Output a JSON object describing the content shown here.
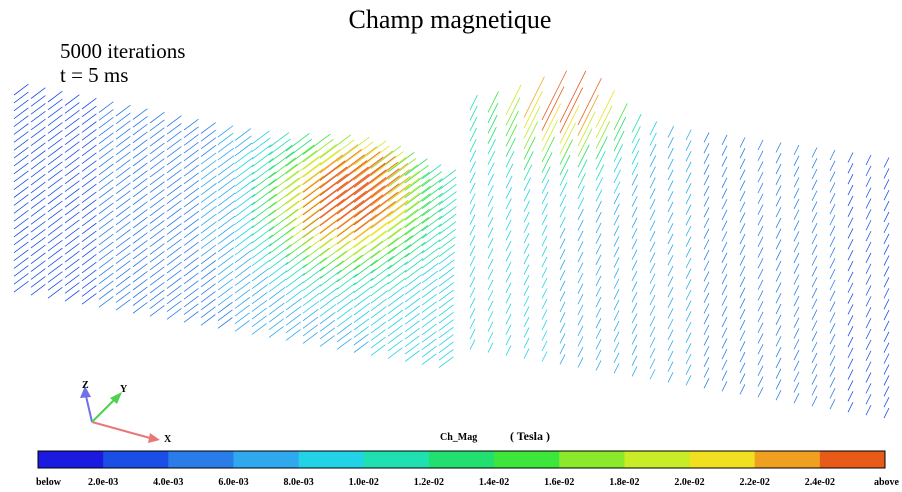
{
  "title": "Champ magnetique",
  "annotation": {
    "line1": "5000 iterations",
    "line2": "t = 5 ms"
  },
  "axes": {
    "x": "X",
    "y": "Y",
    "z": "Z"
  },
  "colorbar": {
    "label": "Ch_Mag",
    "unit": "( Tesla )",
    "ticks": [
      "below",
      "2.0e-03",
      "4.0e-03",
      "6.0e-03",
      "8.0e-03",
      "1.0e-02",
      "1.2e-02",
      "1.4e-02",
      "1.6e-02",
      "1.8e-02",
      "2.0e-02",
      "2.2e-02",
      "2.4e-02",
      "above"
    ],
    "colors": [
      "#1a1ae0",
      "#1a4ee6",
      "#2a7de8",
      "#2fa8ee",
      "#22d2e6",
      "#1fe0b0",
      "#22e070",
      "#3ce63a",
      "#8ce82a",
      "#c8ec26",
      "#f0e020",
      "#f0a020",
      "#e85a18"
    ]
  }
}
